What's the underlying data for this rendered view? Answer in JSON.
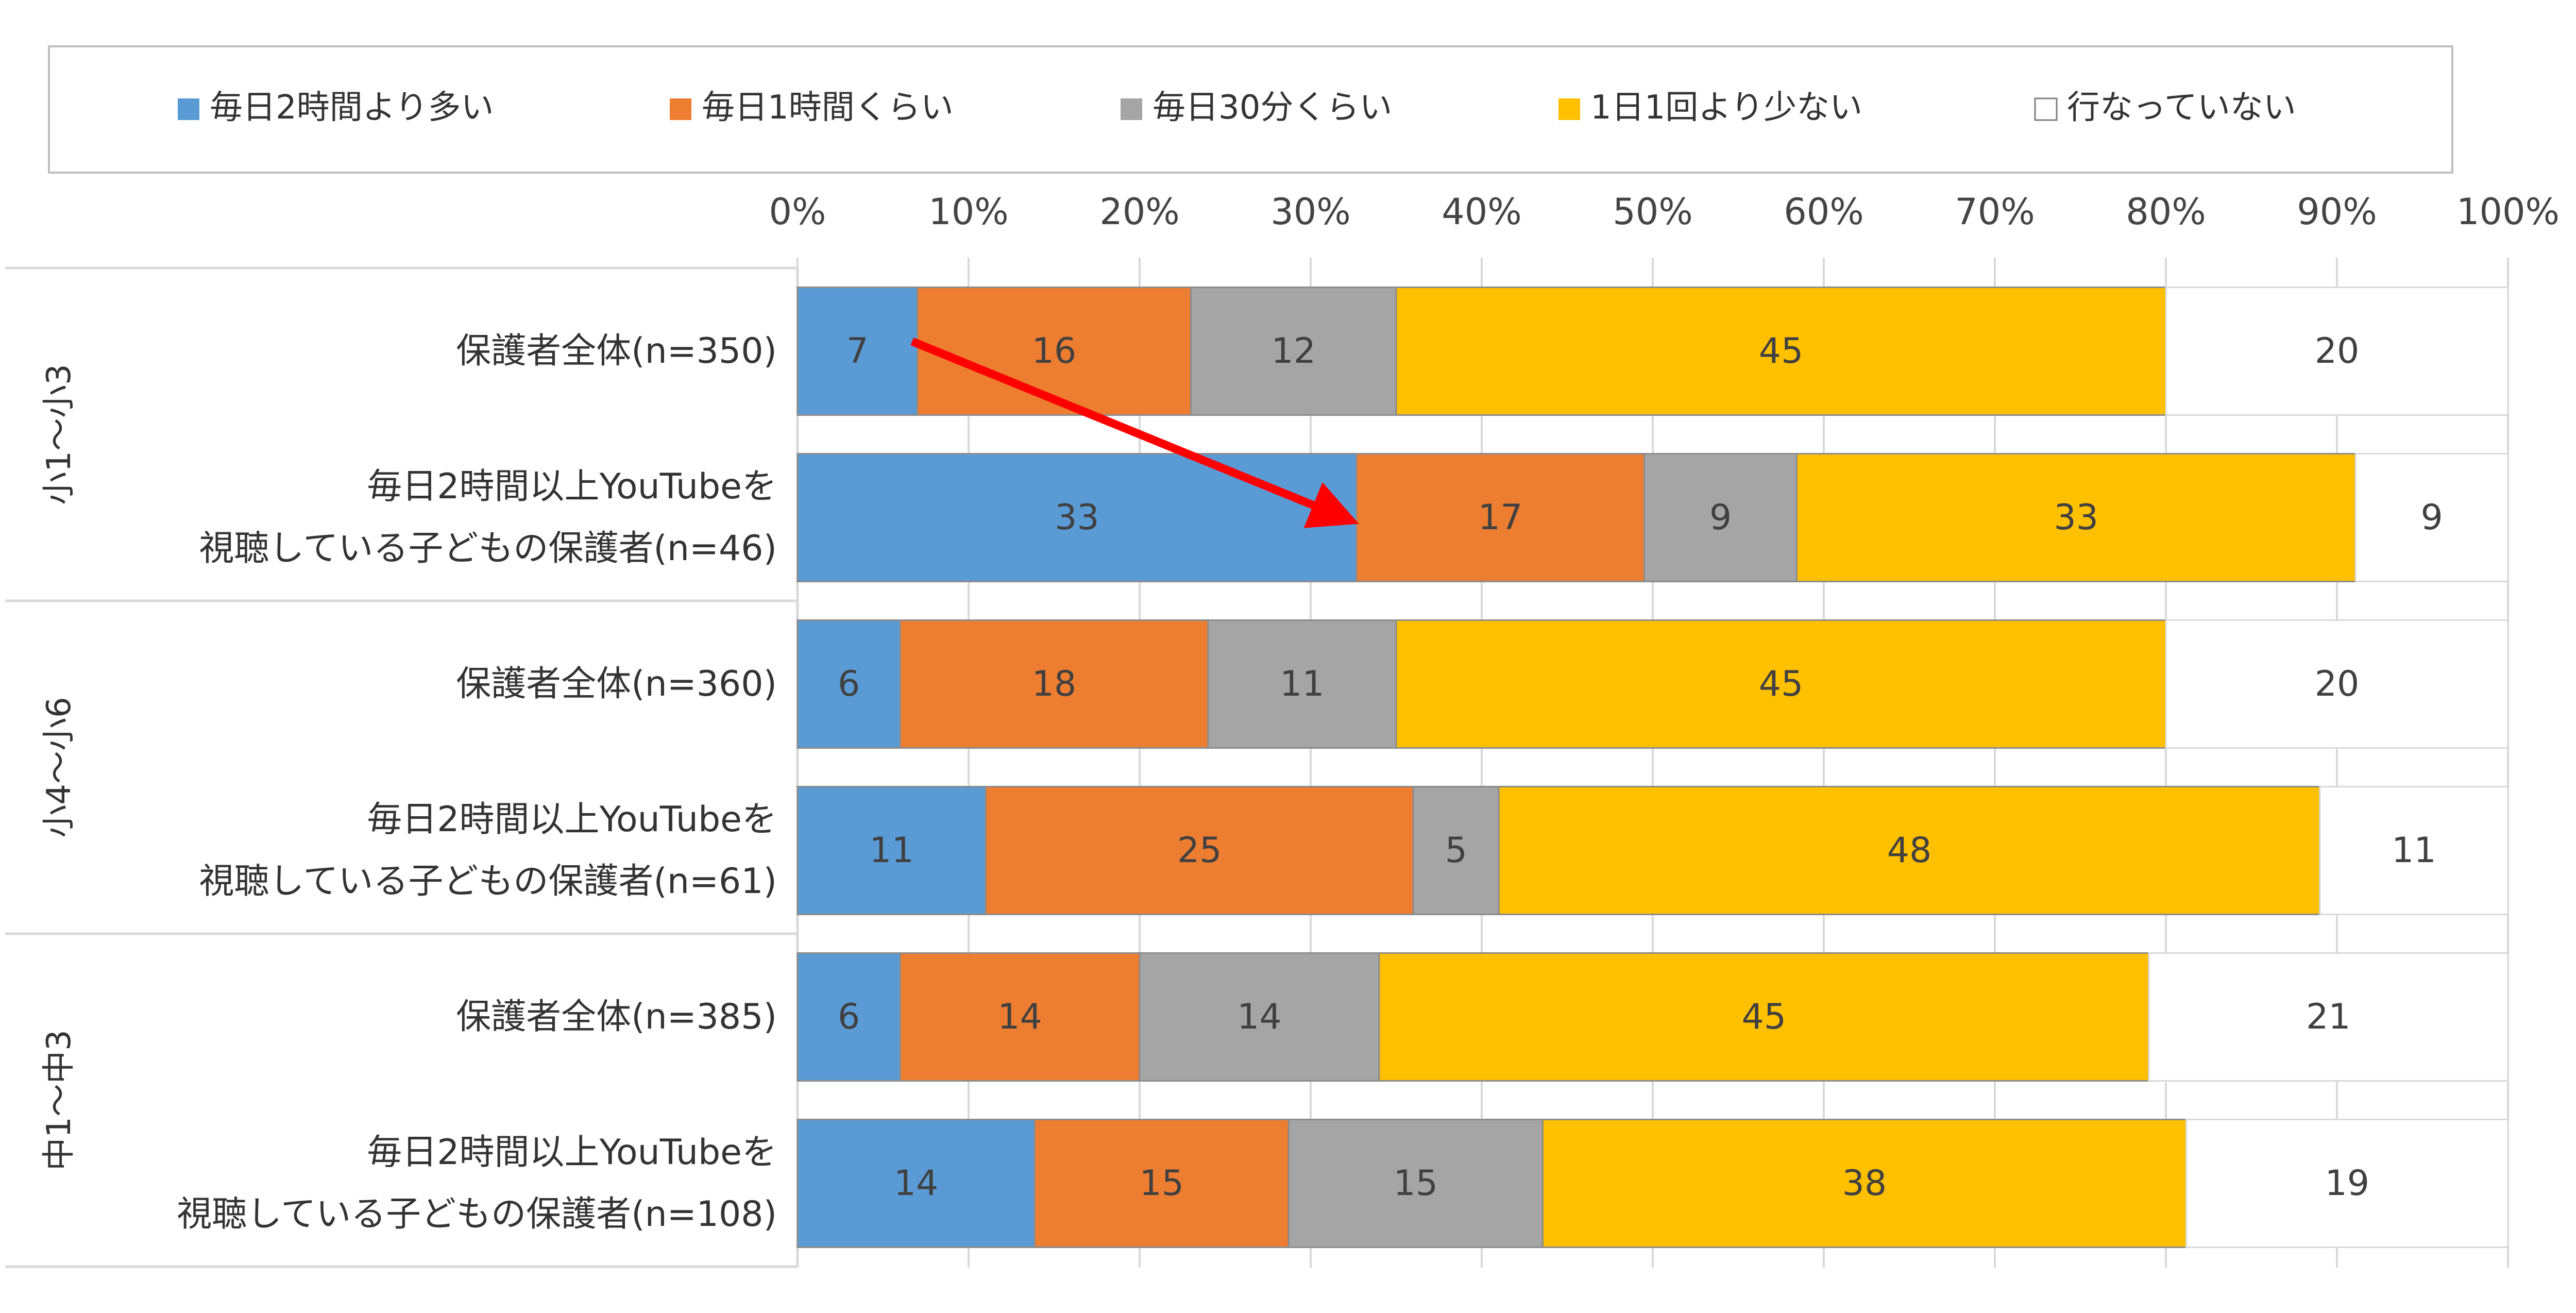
{
  "chart_data": {
    "type": "bar",
    "orientation": "horizontal",
    "stacked": "percent",
    "xlim": [
      0,
      100
    ],
    "x_ticks": [
      "0%",
      "10%",
      "20%",
      "30%",
      "40%",
      "50%",
      "60%",
      "70%",
      "80%",
      "90%",
      "100%"
    ],
    "grid": "vertical",
    "legend_position": "top",
    "series": [
      {
        "name": "毎日2時間より多い",
        "color": "#5b9bd5"
      },
      {
        "name": "毎日1時間くらい",
        "color": "#ed7d31"
      },
      {
        "name": "毎日30分くらい",
        "color": "#a5a5a5"
      },
      {
        "name": "1日1回より少ない",
        "color": "#ffc000"
      },
      {
        "name": "行なっていない",
        "color": "#ffffff"
      }
    ],
    "groups": [
      {
        "label": "小1〜小3",
        "rows": [
          {
            "label": [
              "保護者全体(n=350)"
            ],
            "values": [
              7,
              16,
              12,
              45,
              20
            ]
          },
          {
            "label": [
              "毎日2時間以上YouTubeを",
              "視聴している子どもの保護者(n=46)"
            ],
            "values": [
              33,
              17,
              9,
              33,
              9
            ]
          }
        ]
      },
      {
        "label": "小4〜小6",
        "rows": [
          {
            "label": [
              "保護者全体(n=360)"
            ],
            "values": [
              6,
              18,
              11,
              45,
              20
            ]
          },
          {
            "label": [
              "毎日2時間以上YouTubeを",
              "視聴している子どもの保護者(n=61)"
            ],
            "values": [
              11,
              25,
              5,
              48,
              11
            ]
          }
        ]
      },
      {
        "label": "中1〜中3",
        "rows": [
          {
            "label": [
              "保護者全体(n=385)"
            ],
            "values": [
              6,
              14,
              14,
              45,
              21
            ]
          },
          {
            "label": [
              "毎日2時間以上YouTubeを",
              "視聴している子どもの保護者(n=108)"
            ],
            "values": [
              14,
              15,
              15,
              38,
              19
            ]
          }
        ]
      }
    ],
    "annotation": {
      "type": "arrow",
      "color": "#ff0000",
      "from": {
        "group": 0,
        "row": 0,
        "segment": 0
      },
      "to": {
        "group": 0,
        "row": 1,
        "segment": 0
      }
    }
  }
}
